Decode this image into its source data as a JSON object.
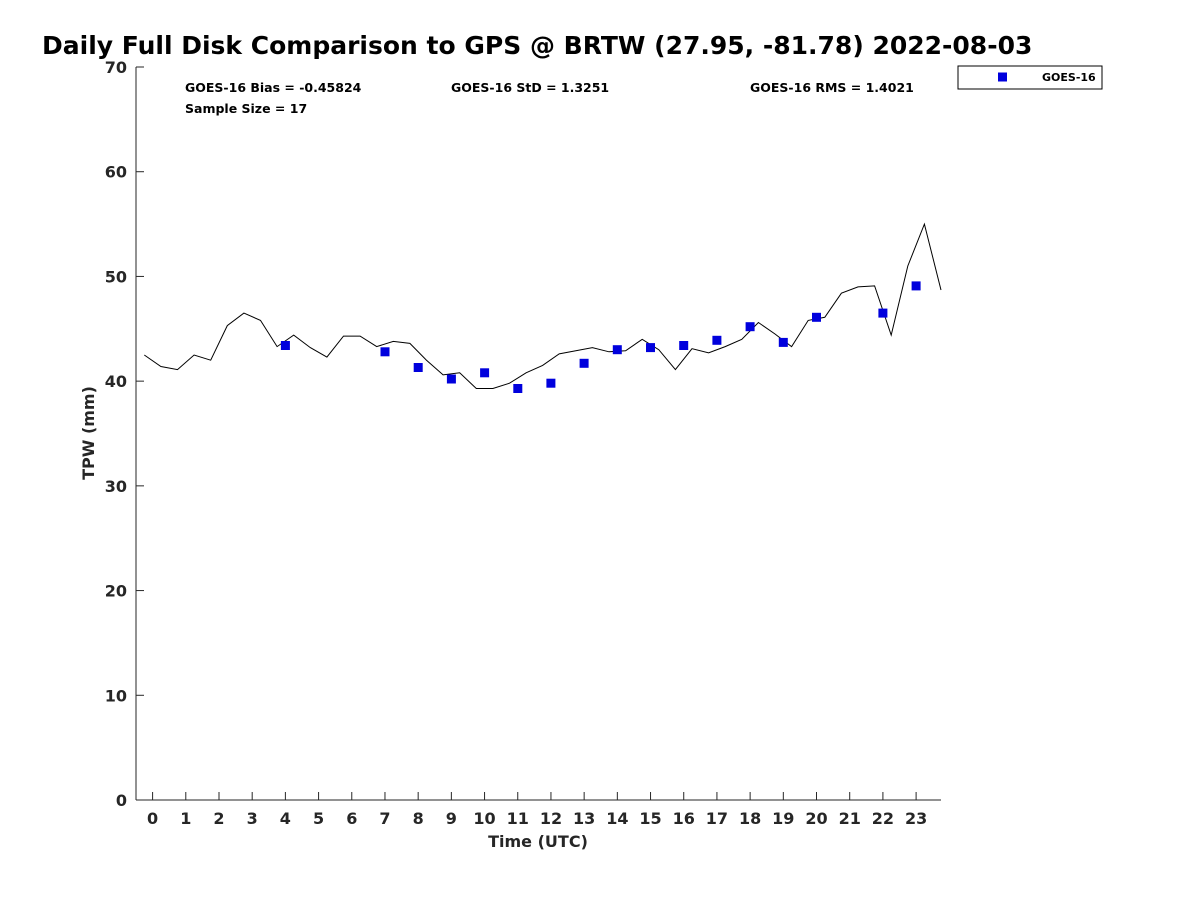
{
  "chart_data": {
    "type": "scatter",
    "title": "Daily Full Disk Comparison to GPS @ BRTW (27.95, -81.78) 2022-08-03",
    "xlabel": "Time (UTC)",
    "ylabel": "TPW (mm)",
    "xlim": [
      -0.5,
      23.75
    ],
    "ylim": [
      0,
      70
    ],
    "x_ticks": [
      0,
      1,
      2,
      3,
      4,
      5,
      6,
      7,
      8,
      9,
      10,
      11,
      12,
      13,
      14,
      15,
      16,
      17,
      18,
      19,
      20,
      21,
      22,
      23
    ],
    "y_ticks": [
      0,
      10,
      20,
      30,
      40,
      50,
      60,
      70
    ],
    "grid": false,
    "legend_position": "top-right, outside plot",
    "stats": {
      "bias": "GOES-16 Bias = -0.45824",
      "std": "GOES-16 StD = 1.3251",
      "rms": "GOES-16 RMS = 1.4021",
      "sample": "Sample Size = 17"
    },
    "series": [
      {
        "name": "GOES-16",
        "style": "markers",
        "marker": "square",
        "color": "#0000dd",
        "x": [
          4.0,
          7.0,
          8.0,
          9.0,
          10.0,
          11.0,
          12.0,
          13.0,
          14.0,
          15.0,
          16.0,
          17.0,
          18.0,
          19.0,
          20.0,
          22.0,
          23.0
        ],
        "y": [
          43.4,
          42.8,
          41.3,
          40.2,
          40.8,
          39.3,
          39.8,
          41.7,
          43.0,
          43.2,
          43.4,
          43.9,
          45.2,
          43.7,
          46.1,
          46.5,
          49.1
        ]
      },
      {
        "style": "line",
        "color": "#000000",
        "x": [
          -0.25,
          0.25,
          0.75,
          1.25,
          1.75,
          2.25,
          2.75,
          3.25,
          3.75,
          4.25,
          4.75,
          5.25,
          5.75,
          6.25,
          6.75,
          7.25,
          7.75,
          8.25,
          8.75,
          9.25,
          9.75,
          10.25,
          10.75,
          11.25,
          11.75,
          12.25,
          12.75,
          13.25,
          13.75,
          14.25,
          14.75,
          15.25,
          15.75,
          16.25,
          16.75,
          17.25,
          17.75,
          18.25,
          18.75,
          19.25,
          19.75,
          20.25,
          20.75,
          21.25,
          21.75,
          22.25,
          22.75,
          23.25,
          23.75
        ],
        "y": [
          42.5,
          41.4,
          41.1,
          42.5,
          42.0,
          45.3,
          46.5,
          45.8,
          43.3,
          44.4,
          43.2,
          42.3,
          44.3,
          44.3,
          43.3,
          43.8,
          43.6,
          42.0,
          40.6,
          40.8,
          39.3,
          39.3,
          39.8,
          40.8,
          41.5,
          42.6,
          42.9,
          43.2,
          42.8,
          42.9,
          44.0,
          43.0,
          41.1,
          43.1,
          42.7,
          43.3,
          44.0,
          45.6,
          44.5,
          43.3,
          45.8,
          46.1,
          48.4,
          49.0,
          49.1,
          44.4,
          51.0,
          55.0,
          48.7
        ]
      }
    ]
  }
}
